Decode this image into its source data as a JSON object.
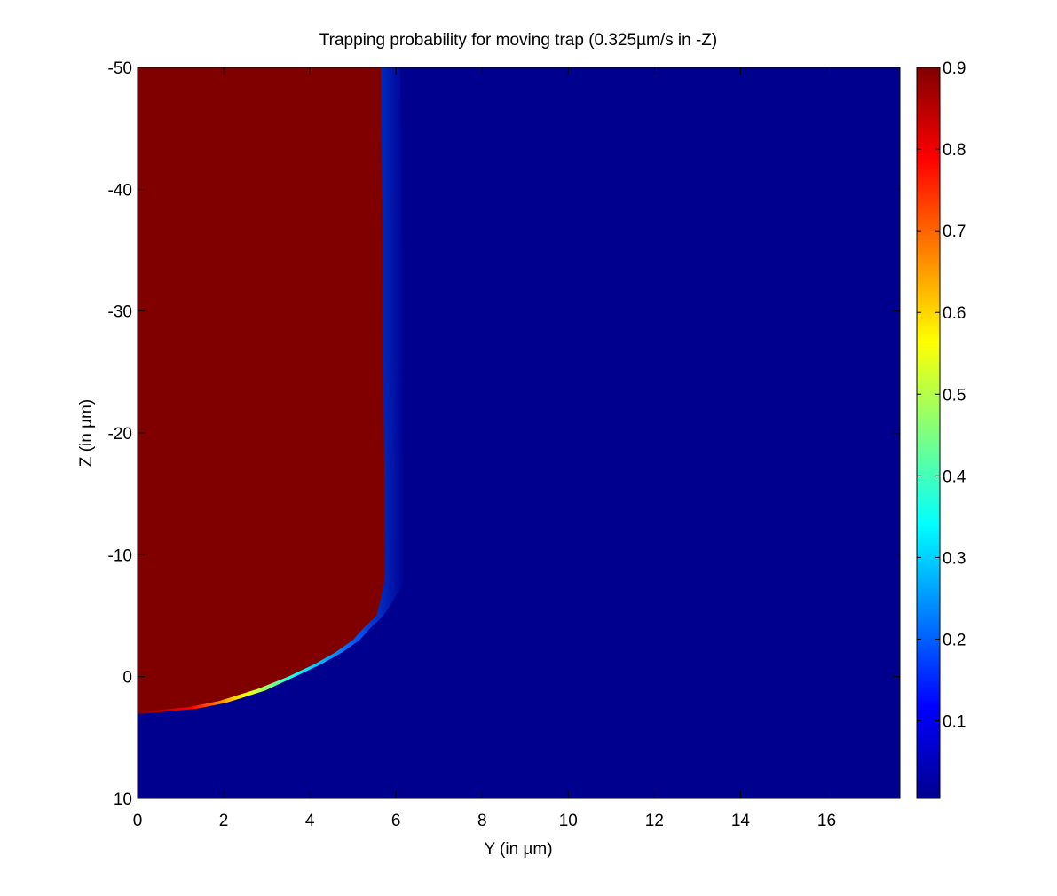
{
  "chart_data": {
    "type": "heatmap",
    "title": "Trapping probability for moving trap (0.325µm/s in -Z)",
    "xlabel": "Y (in µm)",
    "ylabel": "Z (in µm)",
    "xlim": [
      0,
      17.7
    ],
    "ylim": [
      -50,
      10
    ],
    "y_axis_direction": "reversed (-50 at top, 10 at bottom)",
    "xticks": [
      0,
      2,
      4,
      6,
      8,
      10,
      12,
      14,
      16
    ],
    "xtick_labels": [
      "0",
      "2",
      "4",
      "6",
      "8",
      "10",
      "12",
      "14",
      "16"
    ],
    "yticks": [
      -50,
      -40,
      -30,
      -20,
      -10,
      0,
      10
    ],
    "ytick_labels": [
      "-50",
      "-40",
      "-30",
      "-20",
      "-10",
      "0",
      "10"
    ],
    "colormap": "jet",
    "colorbar": {
      "range": [
        0.005,
        0.9
      ],
      "ticks": [
        0.1,
        0.2,
        0.3,
        0.4,
        0.5,
        0.6,
        0.7,
        0.8,
        0.9
      ],
      "tick_labels": [
        "0.1",
        "0.2",
        "0.3",
        "0.4",
        "0.5",
        "0.6",
        "0.7",
        "0.8",
        "0.9"
      ]
    },
    "trapped_region": {
      "value": 0.9,
      "background_value": 0.005,
      "transition_width_um": 0.45,
      "boundary": {
        "z": [
          -50,
          -40,
          -30,
          -20,
          -10,
          -7.5,
          -5,
          -4,
          -3,
          -2,
          -1,
          0,
          1,
          2,
          2.5,
          2.9
        ],
        "y": [
          5.65,
          5.68,
          5.7,
          5.72,
          5.75,
          5.72,
          5.55,
          5.25,
          5.0,
          4.6,
          4.1,
          3.5,
          2.8,
          1.9,
          1.2,
          0.0
        ]
      }
    }
  }
}
